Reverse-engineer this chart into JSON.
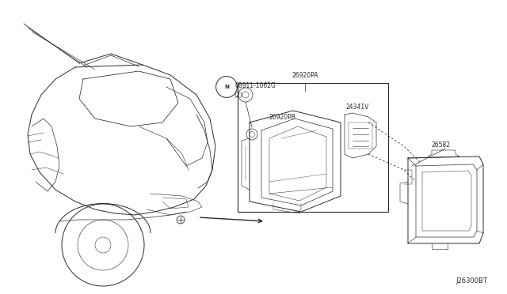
{
  "bg_color": "#ffffff",
  "line_color": "#2a2a2a",
  "font_family": "DejaVu Sans",
  "font_size_label": 5.5,
  "font_size_watermark": 6.0,
  "parts": {
    "N08911": {
      "label": "N08911-1062G",
      "label2": "(2)"
    },
    "26920PA": {
      "label": "26920PA"
    },
    "26920PB": {
      "label": "26920PB"
    },
    "24341V": {
      "label": "24341V"
    },
    "26582": {
      "label": "26582"
    },
    "J26300BT": {
      "label": "J26300BT"
    }
  }
}
